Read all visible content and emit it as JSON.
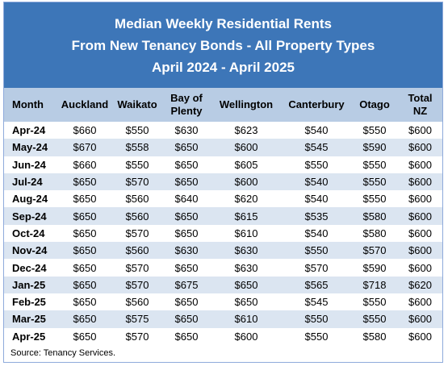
{
  "header": {
    "title_lines": [
      "Median Weekly Residential Rents",
      "From New Tenancy Bonds - All Property Types",
      "April 2024 - April 2025"
    ]
  },
  "table": {
    "columns": [
      "Month",
      "Auckland",
      "Waikato",
      "Bay of Plenty",
      "Wellington",
      "Canterbury",
      "Otago",
      "Total NZ"
    ],
    "rows": [
      [
        "Apr-24",
        "$660",
        "$550",
        "$630",
        "$623",
        "$540",
        "$550",
        "$600"
      ],
      [
        "May-24",
        "$670",
        "$558",
        "$650",
        "$600",
        "$545",
        "$590",
        "$600"
      ],
      [
        "Jun-24",
        "$660",
        "$550",
        "$650",
        "$605",
        "$550",
        "$550",
        "$600"
      ],
      [
        "Jul-24",
        "$650",
        "$570",
        "$650",
        "$600",
        "$540",
        "$550",
        "$600"
      ],
      [
        "Aug-24",
        "$650",
        "$560",
        "$640",
        "$620",
        "$540",
        "$550",
        "$600"
      ],
      [
        "Sep-24",
        "$650",
        "$560",
        "$650",
        "$615",
        "$535",
        "$580",
        "$600"
      ],
      [
        "Oct-24",
        "$650",
        "$570",
        "$650",
        "$610",
        "$540",
        "$580",
        "$600"
      ],
      [
        "Nov-24",
        "$650",
        "$560",
        "$630",
        "$630",
        "$550",
        "$570",
        "$600"
      ],
      [
        "Dec-24",
        "$650",
        "$570",
        "$650",
        "$630",
        "$570",
        "$590",
        "$600"
      ],
      [
        "Jan-25",
        "$650",
        "$570",
        "$675",
        "$650",
        "$565",
        "$718",
        "$620"
      ],
      [
        "Feb-25",
        "$650",
        "$560",
        "$650",
        "$650",
        "$545",
        "$550",
        "$600"
      ],
      [
        "Mar-25",
        "$650",
        "$575",
        "$650",
        "$610",
        "$550",
        "$550",
        "$600"
      ],
      [
        "Apr-25",
        "$650",
        "$570",
        "$650",
        "$600",
        "$550",
        "$580",
        "$600"
      ]
    ]
  },
  "footer": {
    "source": "Source: Tenancy Services."
  }
}
